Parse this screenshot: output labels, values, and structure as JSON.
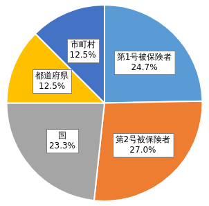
{
  "chart_data": {
    "type": "pie",
    "categories": [
      "第1号被保険者",
      "第2号被保険者",
      "国",
      "都道府県",
      "市町村"
    ],
    "values": [
      24.7,
      27.0,
      23.3,
      12.5,
      12.5
    ],
    "value_labels": [
      "24.7%",
      "27.0%",
      "23.3%",
      "12.5%",
      "12.5%"
    ],
    "colors": [
      "#5B9BD5",
      "#ED7D31",
      "#A5A5A5",
      "#FFC000",
      "#4472C4"
    ],
    "data_labels": true
  }
}
